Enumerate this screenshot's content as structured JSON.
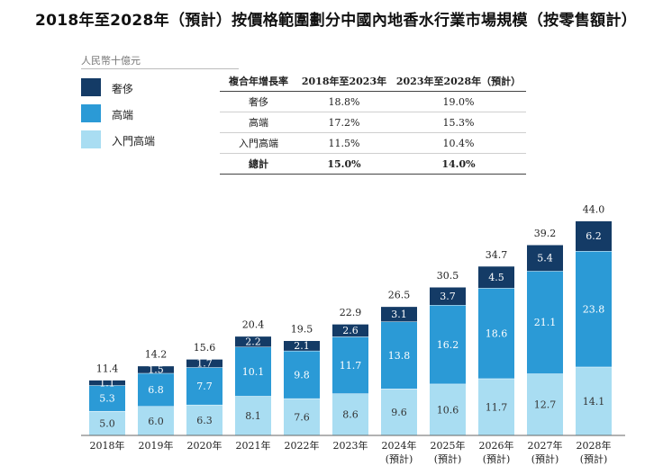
{
  "title": "2018年至2028年（預計）按價格範圍劃分中國內地香水行業市場規模（按零售額計）",
  "unit": "人民幣十億元",
  "colors": {
    "luxury": "#143b66",
    "premium": "#2b9ad6",
    "entry": "#a9ddf2"
  },
  "legend": [
    {
      "label": "奢侈",
      "color": "#143b66"
    },
    {
      "label": "高端",
      "color": "#2b9ad6"
    },
    {
      "label": "入門高端",
      "color": "#a9ddf2"
    }
  ],
  "cagr_table": {
    "headers": [
      "複合年增長率",
      "2018年至2023年",
      "2023年至2028年（預計）"
    ],
    "rows": [
      [
        "奢侈",
        "18.8%",
        "19.0%"
      ],
      [
        "高端",
        "17.2%",
        "15.3%"
      ],
      [
        "入門高端",
        "11.5%",
        "10.4%"
      ],
      [
        "總計",
        "15.0%",
        "14.0%"
      ]
    ]
  },
  "chart_data": {
    "type": "bar",
    "stacked": true,
    "categories": [
      "2018年",
      "2019年",
      "2020年",
      "2021年",
      "2022年",
      "2023年",
      "2024年\n(預計)",
      "2025年\n(預計)",
      "2026年\n(預計)",
      "2027年\n(預計)",
      "2028年\n(預計)"
    ],
    "series": [
      {
        "name": "入門高端",
        "values": [
          5.0,
          6.0,
          6.3,
          8.1,
          7.6,
          8.6,
          9.6,
          10.6,
          11.7,
          12.7,
          14.1
        ]
      },
      {
        "name": "高端",
        "values": [
          5.3,
          6.8,
          7.7,
          10.1,
          9.8,
          11.7,
          13.8,
          16.2,
          18.6,
          21.1,
          23.8
        ]
      },
      {
        "name": "奢侈",
        "values": [
          1.1,
          1.5,
          1.7,
          2.2,
          2.1,
          2.6,
          3.1,
          3.7,
          4.5,
          5.4,
          6.2
        ]
      }
    ],
    "totals": [
      11.4,
      14.2,
      15.6,
      20.4,
      19.5,
      22.9,
      26.5,
      30.5,
      34.7,
      39.2,
      44.0
    ],
    "value_labels": {
      "入門高端": [
        "5.0",
        "6.0",
        "6.3",
        "8.1",
        "7.6",
        "8.6",
        "9.6",
        "10.6",
        "11.7",
        "12.7",
        "14.1"
      ],
      "高端": [
        "5.3",
        "6.8",
        "7.7",
        "10.1",
        "9.8",
        "11.7",
        "13.8",
        "16.2",
        "18.6",
        "21.1",
        "23.8"
      ],
      "奢侈": [
        "1.1",
        "1.5",
        "1.7",
        "2.2",
        "2.1",
        "2.6",
        "3.1",
        "3.7",
        "4.5",
        "5.4",
        "6.2"
      ]
    },
    "total_labels": [
      "11.4",
      "14.2",
      "15.6",
      "20.4",
      "19.5",
      "22.9",
      "26.5",
      "30.5",
      "34.7",
      "39.2",
      "44.0"
    ],
    "ylim": [
      0,
      44.0
    ],
    "grid": false,
    "legend_position": "top-left"
  }
}
